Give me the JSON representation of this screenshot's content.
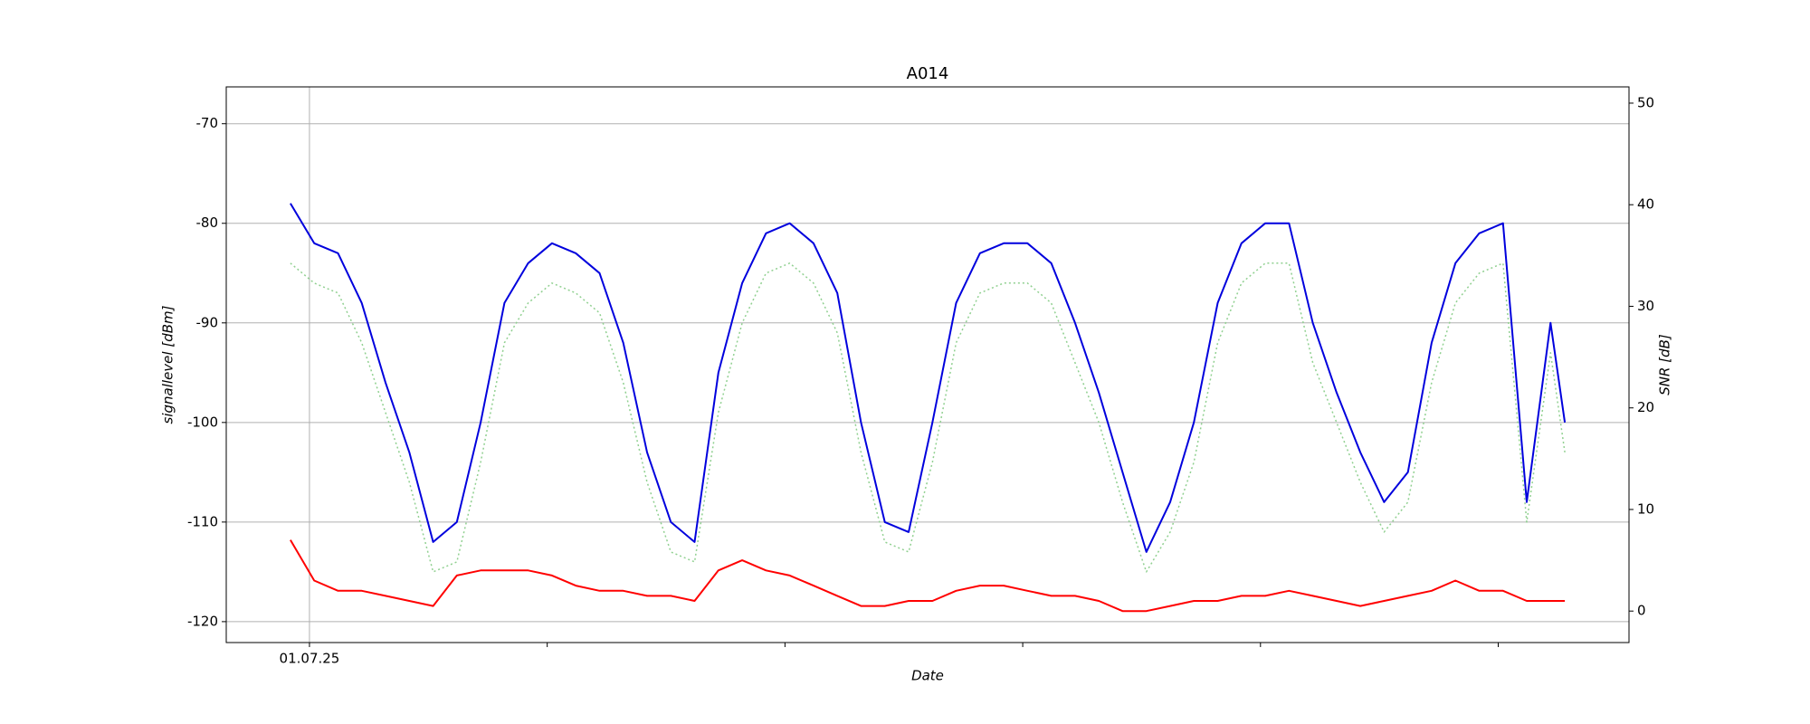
{
  "chart_data": {
    "type": "line",
    "title": "A014",
    "xlabel": "Date",
    "ylabel": "signallevel [dBm]",
    "y2label": "SNR [dB]",
    "x": [
      -0.08,
      0.02,
      0.12,
      0.22,
      0.32,
      0.42,
      0.52,
      0.62,
      0.72,
      0.82,
      0.92,
      1.02,
      1.12,
      1.22,
      1.32,
      1.42,
      1.52,
      1.62,
      1.72,
      1.82,
      1.92,
      2.02,
      2.12,
      2.22,
      2.32,
      2.42,
      2.52,
      2.62,
      2.72,
      2.82,
      2.92,
      3.02,
      3.12,
      3.22,
      3.32,
      3.42,
      3.52,
      3.62,
      3.72,
      3.82,
      3.92,
      4.02,
      4.12,
      4.22,
      4.32,
      4.42,
      4.52,
      4.62,
      4.72,
      4.82,
      4.92,
      5.02,
      5.12,
      5.22,
      5.28
    ],
    "series": [
      {
        "color": "#90d090",
        "dashed": true,
        "values": [
          -84,
          -86,
          -87,
          -92,
          -99,
          -106,
          -115,
          -114,
          -104,
          -92,
          -88,
          -86,
          -87,
          -89,
          -96,
          -106,
          -113,
          -114,
          -99,
          -90,
          -85,
          -84,
          -86,
          -91,
          -103,
          -112,
          -113,
          -104,
          -92,
          -87,
          -86,
          -86,
          -88,
          -94,
          -100,
          -108,
          -115,
          -111,
          -104,
          -92,
          -86,
          -84,
          -84,
          -94,
          -100,
          -106,
          -111,
          -108,
          -96,
          -88,
          -85,
          -84,
          -110,
          -93,
          -103
        ]
      },
      {
        "color": "#0000dd",
        "values": [
          -78,
          -82,
          -83,
          -88,
          -96,
          -103,
          -112,
          -110,
          -100,
          -88,
          -84,
          -82,
          -83,
          -85,
          -92,
          -103,
          -110,
          -112,
          -95,
          -86,
          -81,
          -80,
          -82,
          -87,
          -100,
          -110,
          -111,
          -100,
          -88,
          -83,
          -82,
          -82,
          -84,
          -90,
          -97,
          -105,
          -113,
          -108,
          -100,
          -88,
          -82,
          -80,
          -80,
          -90,
          -97,
          -103,
          -108,
          -105,
          -92,
          -84,
          -81,
          -80,
          -108,
          -90,
          -100
        ]
      },
      {
        "color": "#ff0000",
        "axis": "y2",
        "values": [
          7,
          3,
          2,
          2,
          1.5,
          1,
          0.5,
          3.5,
          4,
          4,
          4,
          3.5,
          2.5,
          2,
          2,
          1.5,
          1.5,
          1,
          4,
          5,
          4,
          3.5,
          2.5,
          1.5,
          0.5,
          0.5,
          1,
          1,
          2,
          2.5,
          2.5,
          2,
          1.5,
          1.5,
          1,
          0,
          0,
          0.5,
          1,
          1,
          1.5,
          1.5,
          2,
          1.5,
          1,
          0.5,
          1,
          1.5,
          2,
          3,
          2,
          2,
          1,
          1,
          1
        ]
      }
    ],
    "xlim": [
      -0.35,
      5.55
    ],
    "xticks": [
      {
        "value": 0,
        "label": "01.07.25"
      },
      {
        "value": 1
      },
      {
        "value": 2
      },
      {
        "value": 3
      },
      {
        "value": 4
      },
      {
        "value": 5
      }
    ],
    "ylim": [
      -122.1,
      -66.3
    ],
    "yticks": [
      -120,
      -110,
      -100,
      -90,
      -80,
      -70
    ],
    "y2lim": [
      -3.1,
      51.6
    ],
    "y2ticks": [
      0,
      10,
      20,
      30,
      40,
      50
    ],
    "grid": true
  }
}
